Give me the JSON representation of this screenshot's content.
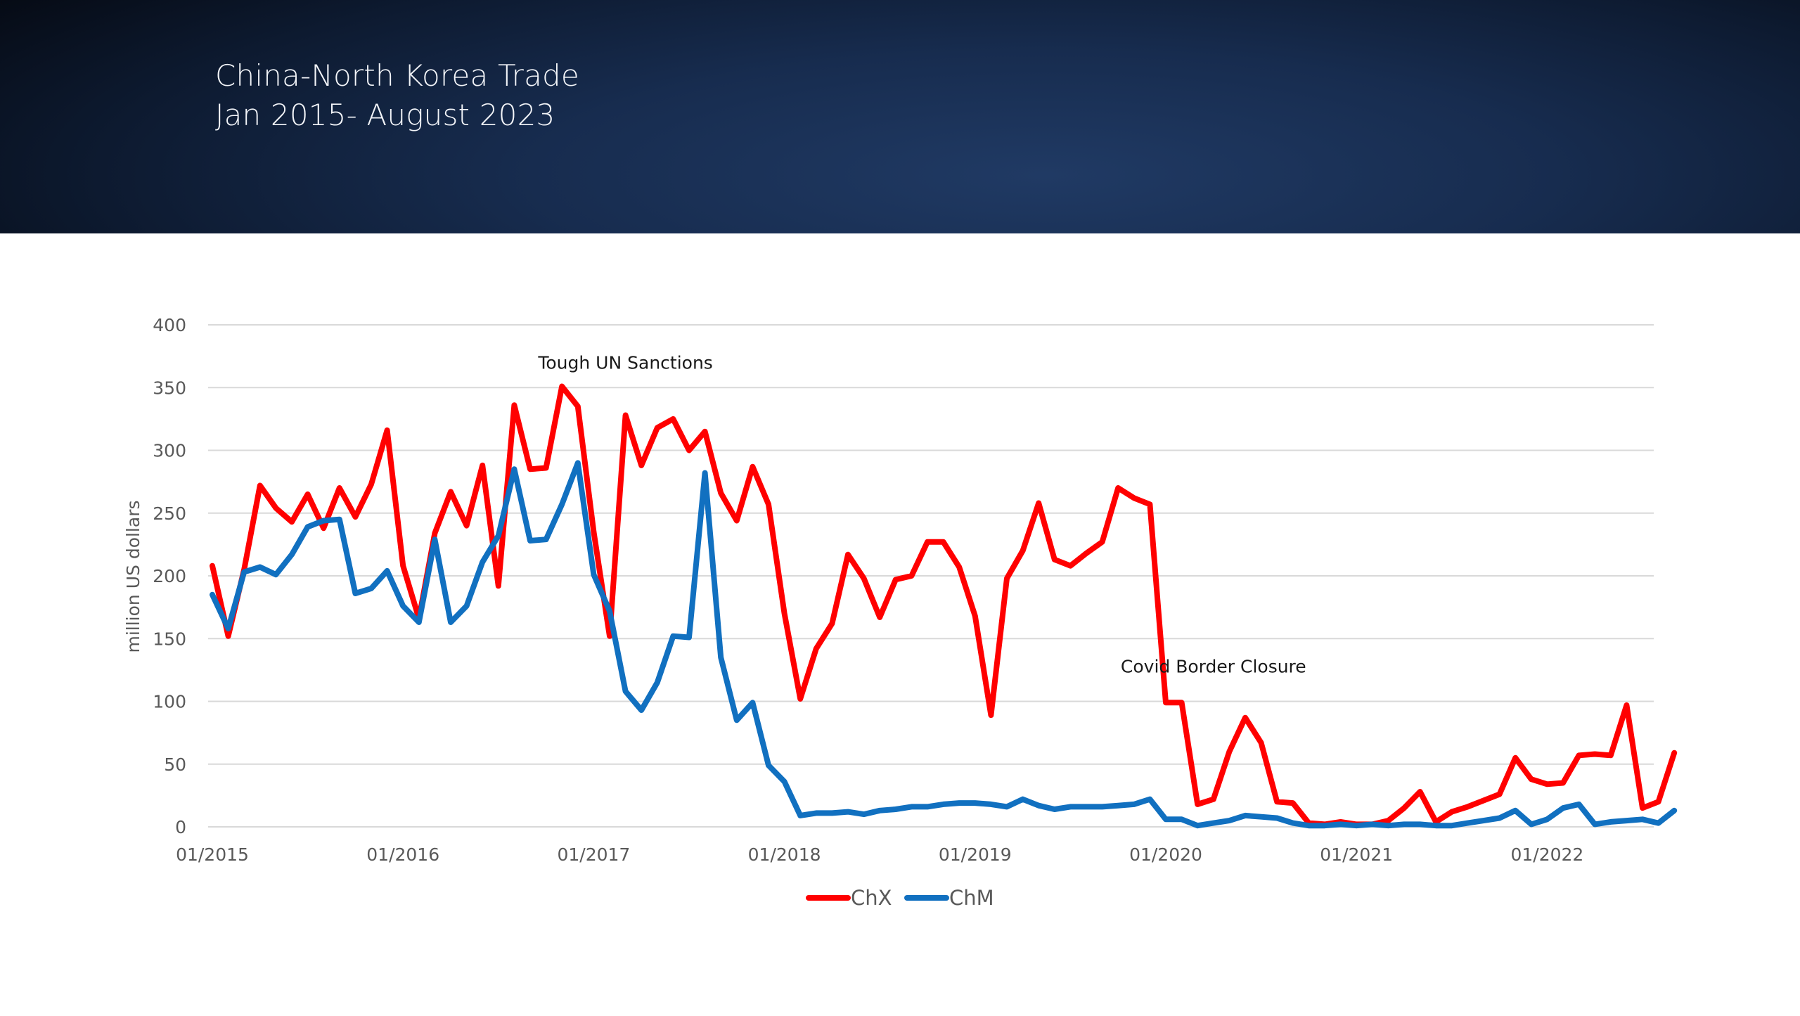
{
  "header": {
    "title_line1": "China-North Korea Trade",
    "title_line2": "Jan 2015- August 2023"
  },
  "colors": {
    "ChX": "#ff0000",
    "ChM": "#1170c0",
    "grid": "#d9d9d9",
    "axis_text": "#595959"
  },
  "chart_data": {
    "type": "line",
    "title": "",
    "xlabel": "",
    "ylabel": "million US dollars",
    "ylim": [
      0,
      400
    ],
    "yticks": [
      0,
      50,
      100,
      150,
      200,
      250,
      300,
      350,
      400
    ],
    "x_start": "01/2015",
    "x_tick_labels": [
      "01/2015",
      "01/2016",
      "01/2017",
      "01/2018",
      "01/2019",
      "01/2020",
      "01/2021",
      "01/2022"
    ],
    "grid": true,
    "legend_position": "bottom",
    "annotations": [
      {
        "text": "Tough UN Sanctions",
        "x_month": 26,
        "y": 370
      },
      {
        "text": "Covid Border Closure",
        "x_month": 63,
        "y": 128
      }
    ],
    "series": [
      {
        "name": "ChX",
        "values": [
          208,
          152,
          205,
          272,
          254,
          243,
          265,
          238,
          270,
          247,
          273,
          316,
          208,
          166,
          234,
          267,
          240,
          288,
          192,
          336,
          285,
          286,
          351,
          335,
          235,
          152,
          328,
          288,
          318,
          325,
          300,
          315,
          266,
          244,
          287,
          257,
          170,
          102,
          142,
          162,
          217,
          198,
          167,
          197,
          200,
          227,
          227,
          207,
          168,
          89,
          198,
          220,
          258,
          213,
          208,
          218,
          227,
          270,
          262,
          257,
          99,
          99,
          18,
          22,
          60,
          87,
          67,
          20,
          19,
          3,
          2,
          4,
          2,
          2,
          5,
          15,
          28,
          4,
          12,
          16,
          21,
          26,
          55,
          38,
          34,
          35,
          57,
          58,
          57,
          97,
          15,
          20,
          59
        ]
      },
      {
        "name": "ChM",
        "values": [
          185,
          158,
          203,
          207,
          201,
          217,
          239,
          244,
          245,
          186,
          190,
          204,
          176,
          163,
          229,
          163,
          176,
          211,
          232,
          285,
          228,
          229,
          257,
          290,
          201,
          172,
          108,
          93,
          115,
          152,
          151,
          282,
          135,
          85,
          99,
          49,
          36,
          9,
          11,
          11,
          12,
          10,
          13,
          14,
          16,
          16,
          18,
          19,
          19,
          18,
          16,
          22,
          17,
          14,
          16,
          16,
          16,
          17,
          18,
          22,
          6,
          6,
          1,
          3,
          5,
          9,
          8,
          7,
          3,
          1,
          1,
          2,
          1,
          2,
          1,
          2,
          2,
          1,
          1,
          3,
          5,
          7,
          13,
          2,
          6,
          15,
          18,
          2,
          4,
          5,
          6,
          3,
          13
        ]
      }
    ]
  }
}
